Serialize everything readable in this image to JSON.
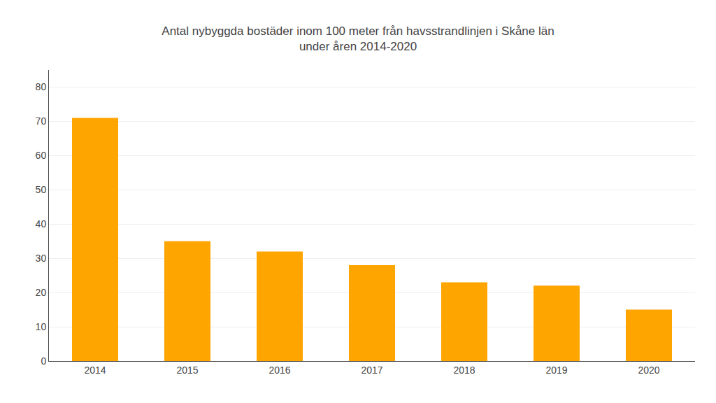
{
  "chart_data": {
    "type": "bar",
    "title": "Antal nybyggda bostäder inom 100 meter från havsstrandlinjen i Skåne län",
    "subtitle": "under åren 2014-2020",
    "categories": [
      "2014",
      "2015",
      "2016",
      "2017",
      "2018",
      "2019",
      "2020"
    ],
    "values": [
      71,
      35,
      32,
      28,
      23,
      22,
      15
    ],
    "color": "#FFA500",
    "ylim": [
      0,
      85
    ],
    "yticks": [
      0,
      10,
      20,
      30,
      40,
      50,
      60,
      70,
      80
    ],
    "grid": true
  }
}
